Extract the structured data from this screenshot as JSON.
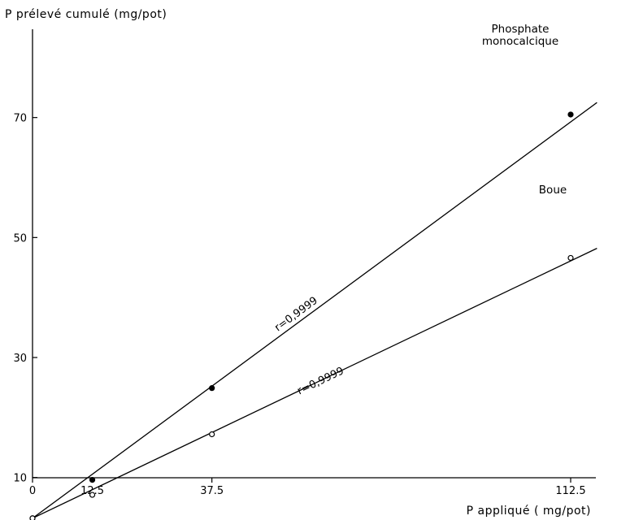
{
  "chart_data": {
    "type": "scatter",
    "ylabel": "P prélevé cumulé (mg/pot)",
    "xlabel": "P appliqué ( mg/pot)",
    "x_ticks": [
      "0",
      "12.5",
      "37.5",
      "112.5"
    ],
    "y_ticks": [
      "10",
      "30",
      "50",
      "70"
    ],
    "xlim": [
      0,
      118
    ],
    "ylim": [
      2,
      80
    ],
    "series": [
      {
        "name": "Phosphate monocalcique",
        "label_lines": [
          "Phosphate",
          "monocalcique"
        ],
        "marker": "filled",
        "x": [
          0,
          12.5,
          37.5,
          112.5
        ],
        "y": [
          3.2,
          9.6,
          24.9,
          70.5
        ],
        "fit": {
          "x0": 0,
          "y0": 3.2,
          "x1": 118,
          "y1": 72.5
        },
        "r_label": "r=0,9999",
        "r_label_at": [
          55.5,
          36.8
        ]
      },
      {
        "name": "Boue",
        "label_lines": [
          "Boue"
        ],
        "marker": "open",
        "x": [
          0,
          12.5,
          37.5,
          112.5
        ],
        "y": [
          3.2,
          7.1,
          17.2,
          46.6
        ],
        "fit": {
          "x0": 0,
          "y0": 3.2,
          "x1": 118,
          "y1": 48.2
        },
        "r_label": "r=0,9999",
        "r_label_at": [
          60.5,
          25.6
        ]
      }
    ]
  }
}
